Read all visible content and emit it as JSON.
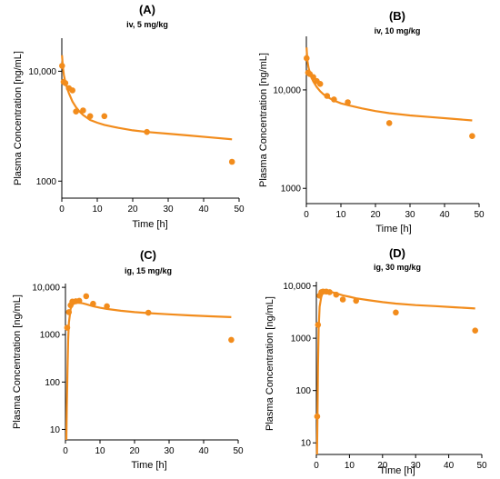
{
  "chart_data": [
    {
      "type": "scatter",
      "label": "(A)",
      "title": "iv, 5 mg/kg",
      "xlabel": "Time [h]",
      "ylabel": "Plasma Concentration [ng/mL]",
      "xlim": [
        0,
        50
      ],
      "ylim": [
        700,
        20000
      ],
      "yscale": "log",
      "xticks": [
        0,
        10,
        20,
        30,
        40,
        50
      ],
      "yticks": [
        {
          "v": 1000,
          "t": "1000"
        },
        {
          "v": 10000,
          "t": "10,000"
        }
      ],
      "points": [
        [
          0.08,
          11200
        ],
        [
          0.5,
          8000
        ],
        [
          1,
          7800
        ],
        [
          2,
          7000
        ],
        [
          3,
          6700
        ],
        [
          4,
          4300
        ],
        [
          6,
          4400
        ],
        [
          8,
          3900
        ],
        [
          12,
          3900
        ],
        [
          24,
          2800
        ],
        [
          48,
          1500
        ]
      ],
      "fit": [
        [
          0.05,
          14000
        ],
        [
          0.3,
          10800
        ],
        [
          0.6,
          9200
        ],
        [
          1,
          8000
        ],
        [
          1.5,
          7000
        ],
        [
          2,
          6300
        ],
        [
          3,
          5300
        ],
        [
          4,
          4700
        ],
        [
          5,
          4300
        ],
        [
          6,
          4000
        ],
        [
          8,
          3600
        ],
        [
          10,
          3400
        ],
        [
          12,
          3250
        ],
        [
          16,
          3050
        ],
        [
          20,
          2900
        ],
        [
          24,
          2800
        ],
        [
          30,
          2700
        ],
        [
          36,
          2600
        ],
        [
          42,
          2500
        ],
        [
          48,
          2400
        ]
      ]
    },
    {
      "type": "scatter",
      "label": "(B)",
      "title": "iv, 10 mg/kg",
      "xlabel": "Time [h]",
      "ylabel": "Plasma Concentration [ng/mL]",
      "xlim": [
        0,
        50
      ],
      "ylim": [
        700,
        35000
      ],
      "yscale": "log",
      "xticks": [
        0,
        10,
        20,
        30,
        40,
        50
      ],
      "yticks": [
        {
          "v": 1000,
          "t": "1000"
        },
        {
          "v": 10000,
          "t": "10,000"
        }
      ],
      "points": [
        [
          0.08,
          21000
        ],
        [
          0.5,
          15000
        ],
        [
          1,
          14500
        ],
        [
          2,
          13500
        ],
        [
          3,
          12300
        ],
        [
          4,
          11500
        ],
        [
          6,
          8700
        ],
        [
          8,
          8000
        ],
        [
          12,
          7500
        ],
        [
          24,
          4600
        ],
        [
          48,
          3400
        ]
      ],
      "fit": [
        [
          0.05,
          27000
        ],
        [
          0.3,
          20000
        ],
        [
          0.6,
          17000
        ],
        [
          1,
          15000
        ],
        [
          1.5,
          13300
        ],
        [
          2,
          12200
        ],
        [
          3,
          10700
        ],
        [
          4,
          9700
        ],
        [
          5,
          9000
        ],
        [
          6,
          8500
        ],
        [
          8,
          7800
        ],
        [
          10,
          7300
        ],
        [
          12,
          7000
        ],
        [
          16,
          6500
        ],
        [
          20,
          6100
        ],
        [
          24,
          5800
        ],
        [
          30,
          5500
        ],
        [
          36,
          5300
        ],
        [
          42,
          5100
        ],
        [
          48,
          4900
        ]
      ]
    },
    {
      "type": "scatter",
      "label": "(C)",
      "title": "ig, 15 mg/kg",
      "xlabel": "Time [h]",
      "ylabel": "Plasma Concentration [ng/mL]",
      "xlim": [
        0,
        50
      ],
      "ylim": [
        6,
        12000
      ],
      "yscale": "log",
      "xticks": [
        0,
        10,
        20,
        30,
        40,
        50
      ],
      "yticks": [
        {
          "v": 10,
          "t": "10"
        },
        {
          "v": 100,
          "t": "100"
        },
        {
          "v": 1000,
          "t": "1000"
        },
        {
          "v": 10000,
          "t": "10,000"
        }
      ],
      "points": [
        [
          0.5,
          1400
        ],
        [
          1,
          3000
        ],
        [
          1.5,
          4200
        ],
        [
          2,
          5000
        ],
        [
          3,
          5100
        ],
        [
          4,
          5200
        ],
        [
          6,
          6500
        ],
        [
          8,
          4500
        ],
        [
          12,
          4000
        ],
        [
          24,
          2900
        ],
        [
          48,
          780
        ]
      ],
      "fit": [
        [
          0.25,
          6
        ],
        [
          0.4,
          30
        ],
        [
          0.6,
          200
        ],
        [
          0.8,
          800
        ],
        [
          1,
          1800
        ],
        [
          1.5,
          3500
        ],
        [
          2,
          4300
        ],
        [
          3,
          4700
        ],
        [
          4,
          4700
        ],
        [
          5,
          4600
        ],
        [
          6,
          4400
        ],
        [
          8,
          4000
        ],
        [
          10,
          3700
        ],
        [
          12,
          3500
        ],
        [
          16,
          3200
        ],
        [
          20,
          3000
        ],
        [
          24,
          2850
        ],
        [
          30,
          2700
        ],
        [
          36,
          2550
        ],
        [
          42,
          2450
        ],
        [
          48,
          2350
        ]
      ]
    },
    {
      "type": "scatter",
      "label": "(D)",
      "title": "ig, 30 mg/kg",
      "xlabel": "Time [h]",
      "ylabel": "Plasma Concentration [ng/mL]",
      "xlim": [
        0,
        50
      ],
      "ylim": [
        6,
        12000
      ],
      "yscale": "log",
      "xticks": [
        0,
        10,
        20,
        30,
        40,
        50
      ],
      "yticks": [
        {
          "v": 10,
          "t": "10"
        },
        {
          "v": 100,
          "t": "100"
        },
        {
          "v": 1000,
          "t": "1000"
        },
        {
          "v": 10000,
          "t": "10,000"
        }
      ],
      "points": [
        [
          0.25,
          32
        ],
        [
          0.5,
          1800
        ],
        [
          1,
          6500
        ],
        [
          1.5,
          7600
        ],
        [
          2,
          7800
        ],
        [
          3,
          7800
        ],
        [
          4,
          7600
        ],
        [
          6,
          6800
        ],
        [
          8,
          5500
        ],
        [
          12,
          5200
        ],
        [
          24,
          3100
        ],
        [
          48,
          1400
        ]
      ],
      "fit": [
        [
          0.2,
          6
        ],
        [
          0.35,
          40
        ],
        [
          0.5,
          300
        ],
        [
          0.7,
          1500
        ],
        [
          1,
          4000
        ],
        [
          1.5,
          6300
        ],
        [
          2,
          7400
        ],
        [
          3,
          7800
        ],
        [
          4,
          7700
        ],
        [
          5,
          7500
        ],
        [
          6,
          7200
        ],
        [
          8,
          6600
        ],
        [
          10,
          6200
        ],
        [
          12,
          5800
        ],
        [
          16,
          5300
        ],
        [
          20,
          4900
        ],
        [
          24,
          4600
        ],
        [
          30,
          4300
        ],
        [
          36,
          4100
        ],
        [
          42,
          3900
        ],
        [
          48,
          3700
        ]
      ]
    }
  ]
}
